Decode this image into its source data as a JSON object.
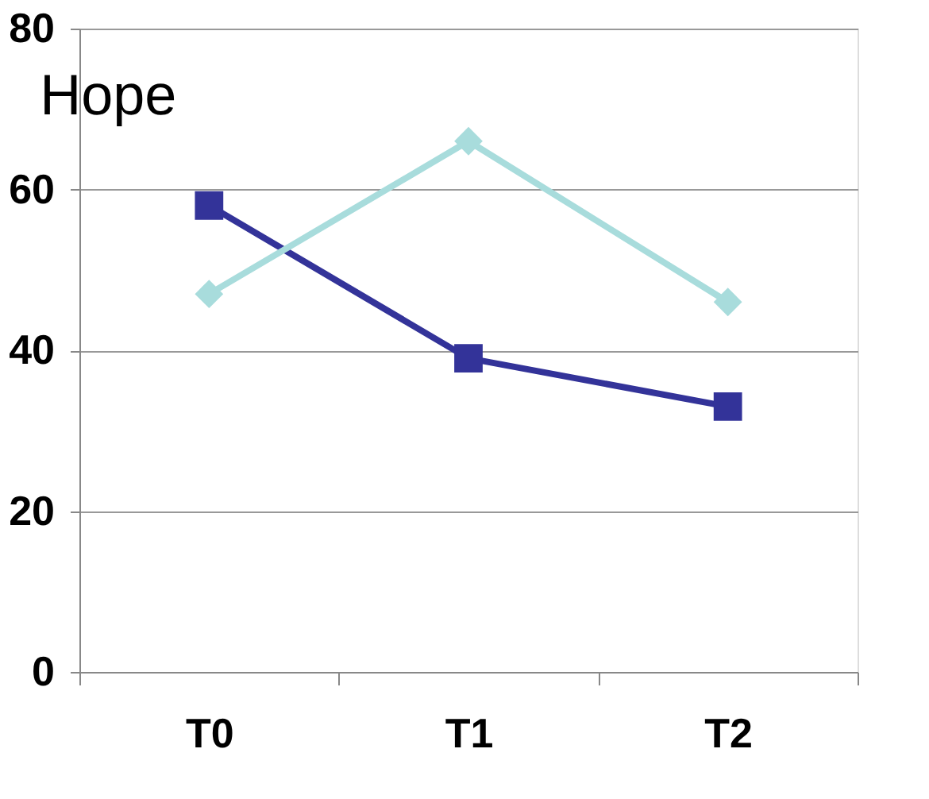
{
  "chart_data": {
    "type": "line",
    "title": "Hope",
    "categories": [
      "T0",
      "T1",
      "T2"
    ],
    "series": [
      {
        "color": "#333399",
        "marker": "square",
        "values": [
          58,
          39,
          33
        ]
      },
      {
        "color": "#a8dcdc",
        "marker": "diamond",
        "values": [
          47,
          66,
          46
        ]
      }
    ],
    "ylim": [
      0,
      80
    ],
    "yticks": [
      0,
      20,
      40,
      60,
      80
    ],
    "grid": "y"
  }
}
